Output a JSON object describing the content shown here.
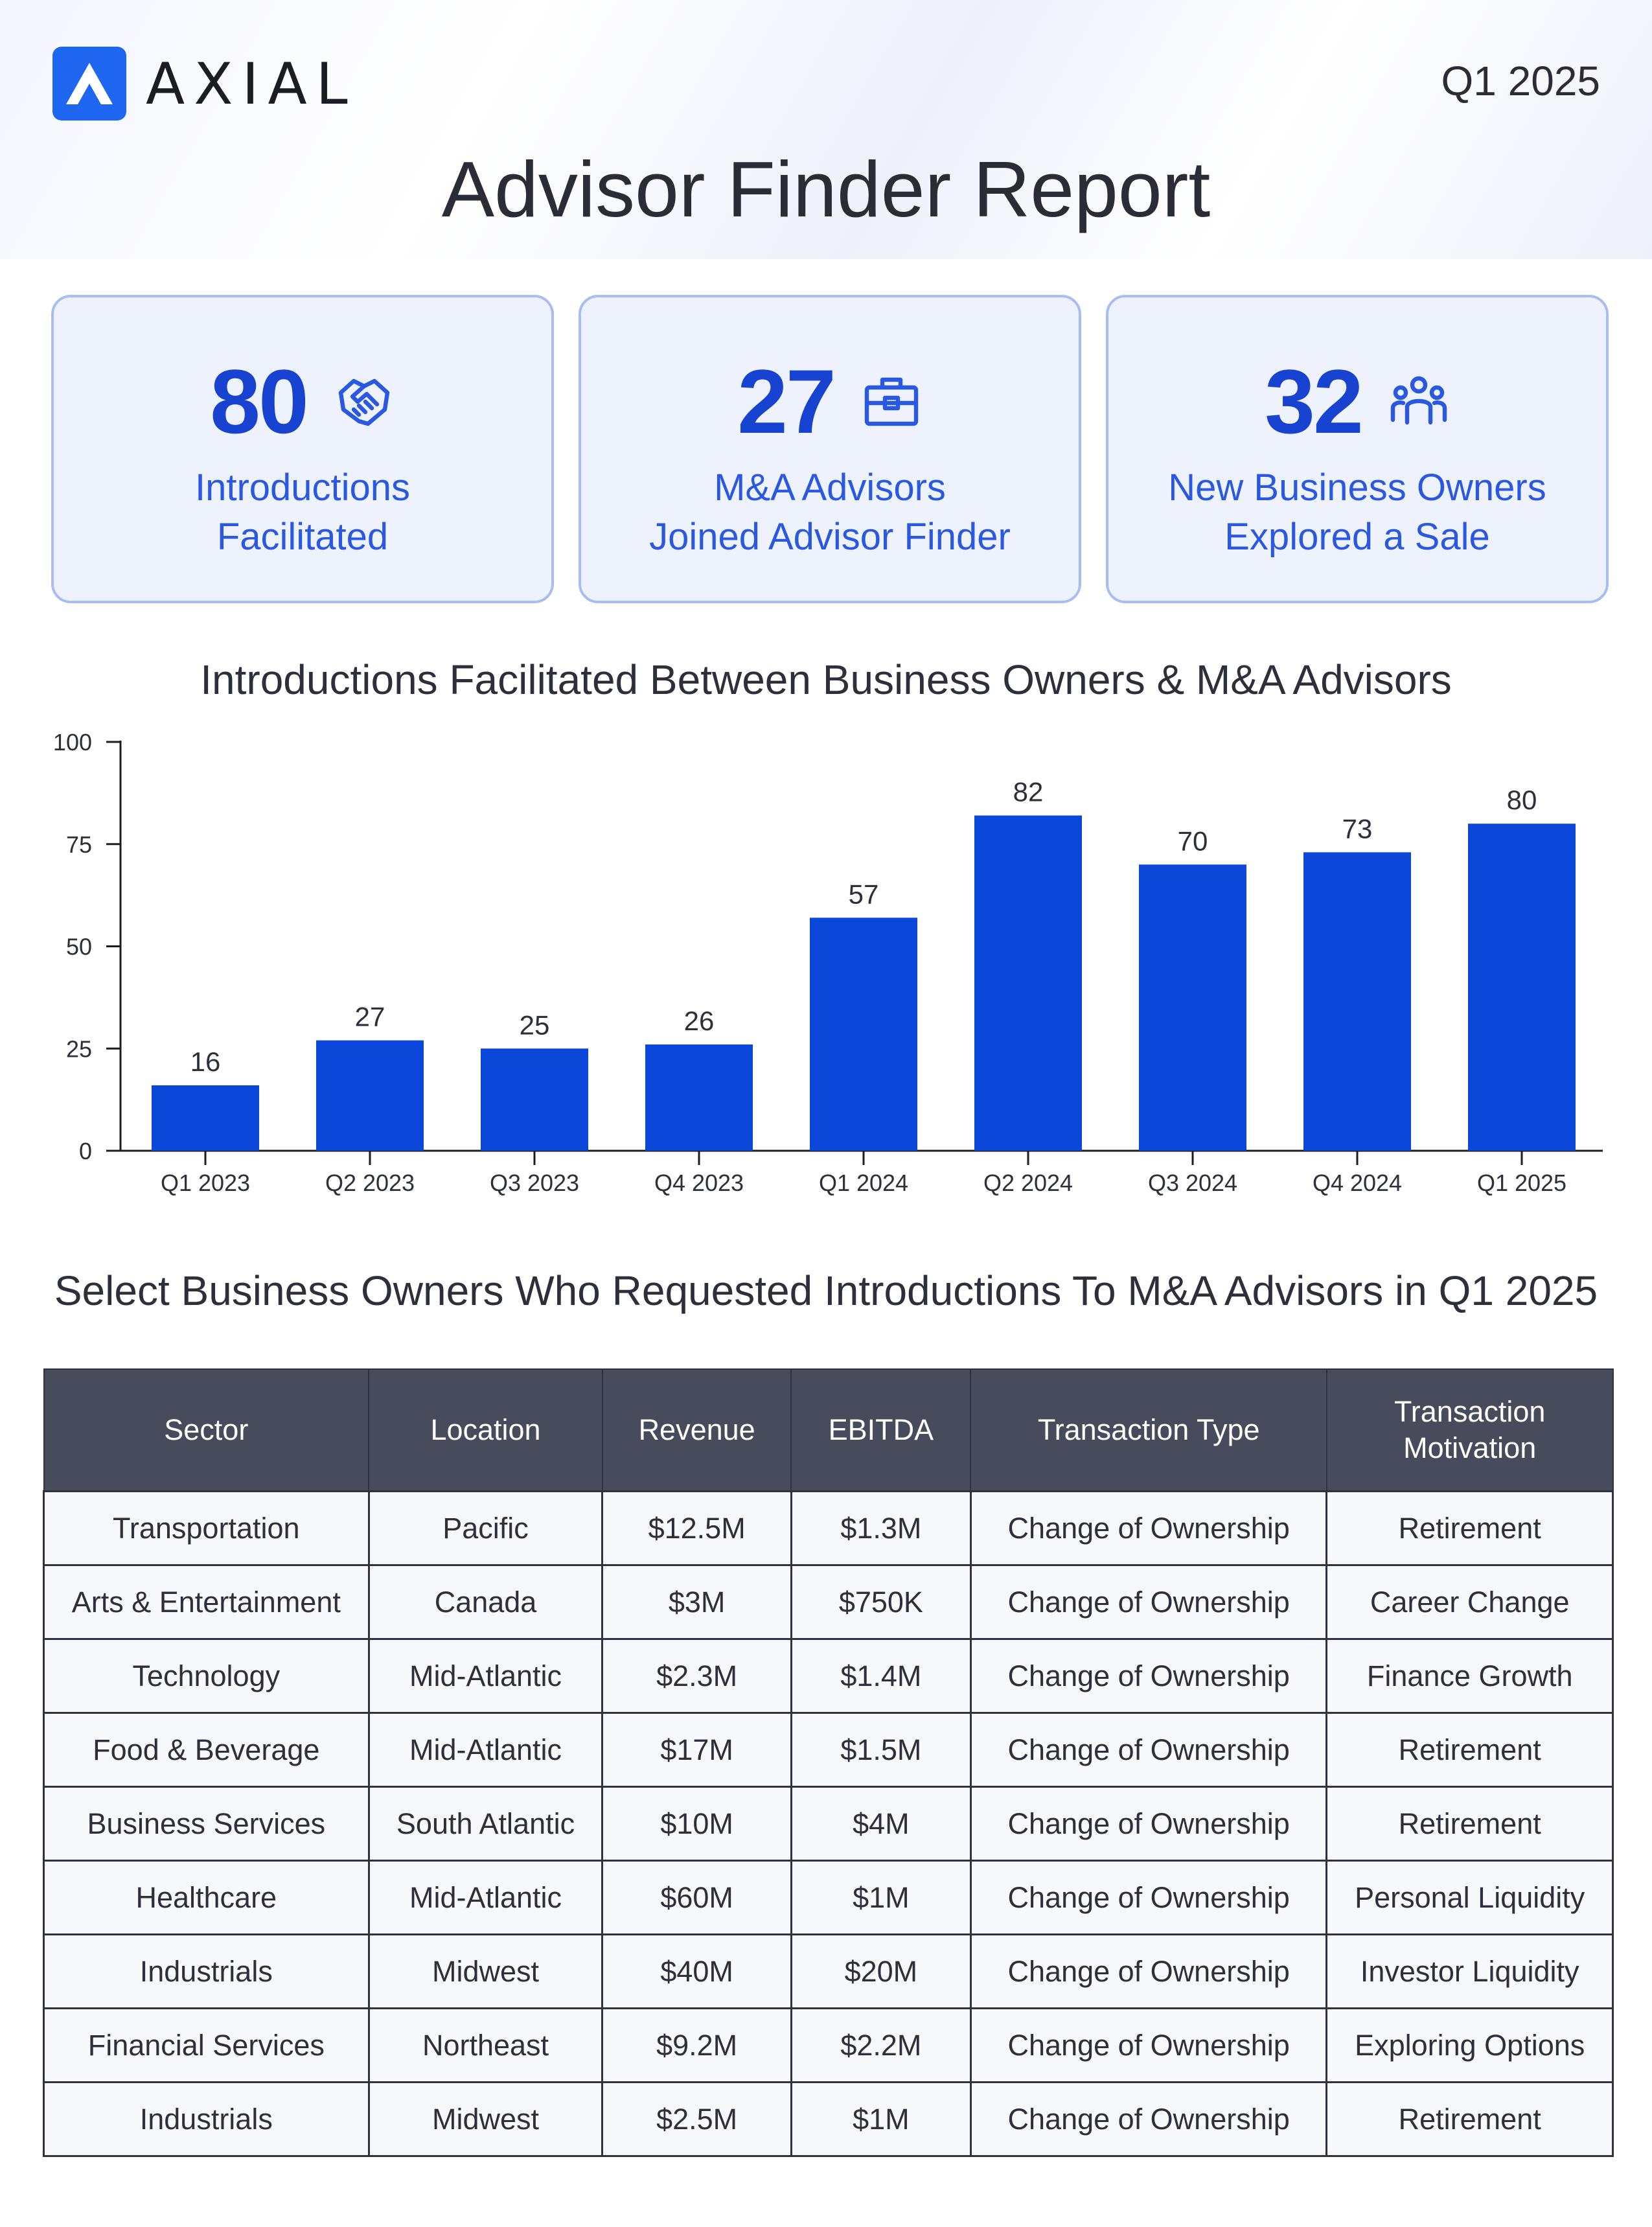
{
  "header": {
    "brand": "AXIAL",
    "period": "Q1 2025",
    "title": "Advisor Finder Report"
  },
  "stats": [
    {
      "value": "80",
      "icon": "handshake-icon",
      "line1": "Introductions",
      "line2": "Facilitated"
    },
    {
      "value": "27",
      "icon": "briefcase-icon",
      "line1": "M&A Advisors",
      "line2": "Joined Advisor Finder"
    },
    {
      "value": "32",
      "icon": "people-icon",
      "line1": "New Business Owners",
      "line2": "Explored a Sale"
    }
  ],
  "colors": {
    "accent": "#1843d1",
    "bar": "#0b47d9",
    "brand": "#1f66f0",
    "table_header": "#474b5b"
  },
  "chart_data": {
    "type": "bar",
    "title": "Introductions Facilitated Between Business Owners & M&A Advisors",
    "categories": [
      "Q1 2023",
      "Q2 2023",
      "Q3 2023",
      "Q4 2023",
      "Q1 2024",
      "Q2 2024",
      "Q3 2024",
      "Q4 2024",
      "Q1 2025"
    ],
    "values": [
      16,
      27,
      25,
      26,
      57,
      82,
      70,
      73,
      80
    ],
    "yticks": [
      0,
      25,
      50,
      75,
      100
    ],
    "ylim": [
      0,
      100
    ],
    "xlabel": "",
    "ylabel": "",
    "grid": false,
    "data_labels": true
  },
  "table": {
    "title": "Select Business Owners Who Requested Introductions To M&A Advisors in Q1 2025",
    "headers": [
      "Sector",
      "Location",
      "Revenue",
      "EBITDA",
      "Transaction Type",
      "Transaction Motivation"
    ],
    "rows": [
      [
        "Transportation",
        "Pacific",
        "$12.5M",
        "$1.3M",
        "Change of Ownership",
        "Retirement"
      ],
      [
        "Arts & Entertainment",
        "Canada",
        "$3M",
        "$750K",
        "Change of Ownership",
        "Career Change"
      ],
      [
        "Technology",
        "Mid-Atlantic",
        "$2.3M",
        "$1.4M",
        "Change of Ownership",
        "Finance Growth"
      ],
      [
        "Food & Beverage",
        "Mid-Atlantic",
        "$17M",
        "$1.5M",
        "Change of Ownership",
        "Retirement"
      ],
      [
        "Business Services",
        "South Atlantic",
        "$10M",
        "$4M",
        "Change of Ownership",
        "Retirement"
      ],
      [
        "Healthcare",
        "Mid-Atlantic",
        "$60M",
        "$1M",
        "Change of Ownership",
        "Personal Liquidity"
      ],
      [
        "Industrials",
        "Midwest",
        "$40M",
        "$20M",
        "Change of Ownership",
        "Investor Liquidity"
      ],
      [
        "Financial Services",
        "Northeast",
        "$9.2M",
        "$2.2M",
        "Change of Ownership",
        "Exploring Options"
      ],
      [
        "Industrials",
        "Midwest",
        "$2.5M",
        "$1M",
        "Change of Ownership",
        "Retirement"
      ]
    ]
  }
}
